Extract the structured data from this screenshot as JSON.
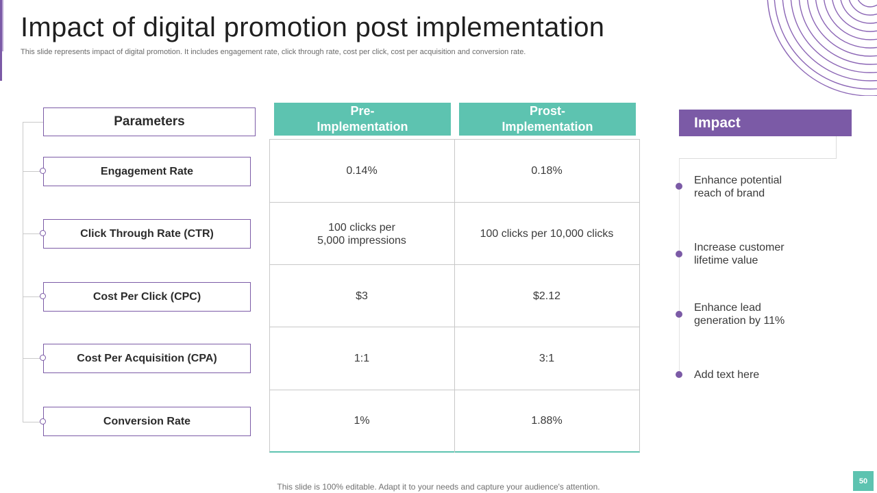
{
  "slide": {
    "title": "Impact of digital promotion post implementation",
    "subtitle": "This slide represents impact of digital promotion. It includes engagement rate, click through rate, cost per click, cost per acquisition and conversion rate.",
    "footer": "This slide is 100% editable. Adapt it to your needs and capture your audience's attention.",
    "page_number": "50"
  },
  "parameters": {
    "header": "Parameters",
    "items": [
      "Engagement Rate",
      "Click  Through Rate (CTR)",
      "Cost Per Click (CPC)",
      "Cost Per Acquisition (CPA)",
      "Conversion Rate"
    ]
  },
  "table": {
    "pre_header_line1": "Pre-",
    "pre_header_line2": "Implementation",
    "post_header_line1": "Prost-",
    "post_header_line2": "Implementation",
    "rows": [
      {
        "pre": "0.14%",
        "post": "0.18%"
      },
      {
        "pre_line1": "100 clicks per",
        "pre_line2": "5,000 impressions",
        "post": "100 clicks per 10,000 clicks"
      },
      {
        "pre": "$3",
        "post": "$2.12"
      },
      {
        "pre": "1:1",
        "post": "3:1"
      },
      {
        "pre": "1%",
        "post": "1.88%"
      }
    ]
  },
  "impact": {
    "header": "Impact",
    "items": [
      {
        "line1": "Enhance potential",
        "line2": "reach of brand"
      },
      {
        "line1": "Increase customer",
        "line2": "lifetime value"
      },
      {
        "line1": "Enhance lead",
        "line2": "generation by 11%"
      },
      {
        "line1": "Add text here",
        "line2": ""
      }
    ]
  },
  "colors": {
    "accent_purple": "#7b5aa6",
    "accent_teal": "#5dc3b0"
  }
}
